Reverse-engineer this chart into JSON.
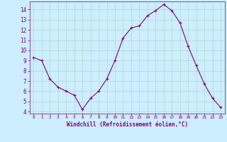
{
  "x": [
    0,
    1,
    2,
    3,
    4,
    5,
    6,
    7,
    8,
    9,
    10,
    11,
    12,
    13,
    14,
    15,
    16,
    17,
    18,
    19,
    20,
    21,
    22,
    23
  ],
  "y": [
    9.3,
    9.0,
    7.2,
    6.4,
    6.0,
    5.6,
    4.2,
    5.3,
    6.0,
    7.2,
    9.0,
    11.2,
    12.2,
    12.4,
    13.4,
    13.9,
    14.5,
    13.9,
    12.7,
    10.4,
    8.5,
    6.7,
    5.3,
    4.4
  ],
  "line_color": "#800080",
  "marker": "+",
  "marker_size": 3,
  "bg_color": "#cceeff",
  "grid_color": "#aaddcc",
  "xlabel": "Windchill (Refroidissement éolien,°C)",
  "xlabel_color": "#800080",
  "tick_color": "#800080",
  "ylim": [
    3.8,
    14.8
  ],
  "xlim": [
    -0.5,
    23.5
  ],
  "yticks": [
    4,
    5,
    6,
    7,
    8,
    9,
    10,
    11,
    12,
    13,
    14
  ],
  "xticks": [
    0,
    1,
    2,
    3,
    4,
    5,
    6,
    7,
    8,
    9,
    10,
    11,
    12,
    13,
    14,
    15,
    16,
    17,
    18,
    19,
    20,
    21,
    22,
    23
  ]
}
